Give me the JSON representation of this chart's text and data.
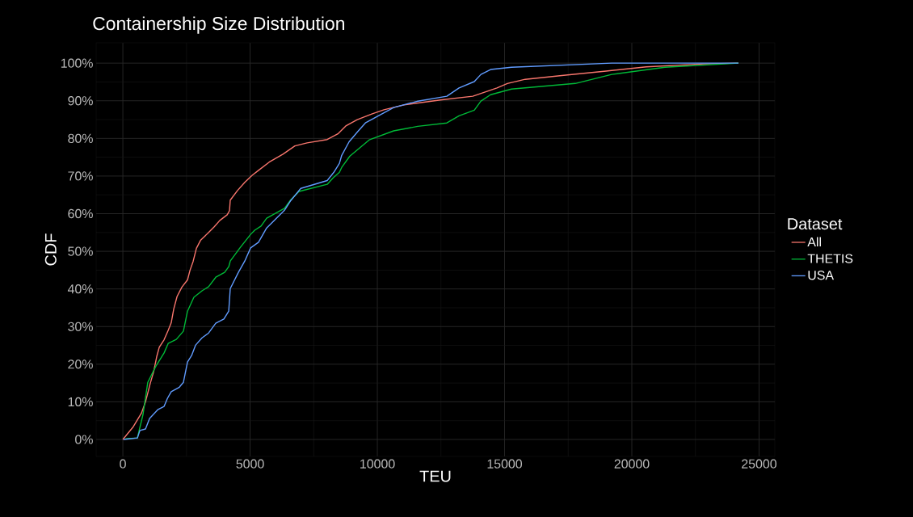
{
  "chart_data": {
    "type": "line",
    "title": "Containership Size Distribution",
    "xlabel": "TEU",
    "ylabel": "CDF",
    "legend_title": "Dataset",
    "legend": "right",
    "grid": true,
    "line_style": "solid",
    "marker": "none",
    "xlim": [
      -1050,
      25620
    ],
    "ylim": [
      -4.5,
      105.4
    ],
    "xticks": [
      0,
      5000,
      10000,
      15000,
      20000,
      25000
    ],
    "yticks": [
      {
        "value": 0,
        "label": "0%"
      },
      {
        "value": 10,
        "label": "10%"
      },
      {
        "value": 20,
        "label": "20%"
      },
      {
        "value": 30,
        "label": "30%"
      },
      {
        "value": 40,
        "label": "40%"
      },
      {
        "value": 50,
        "label": "50%"
      },
      {
        "value": 60,
        "label": "60%"
      },
      {
        "value": 70,
        "label": "70%"
      },
      {
        "value": 80,
        "label": "80%"
      },
      {
        "value": 90,
        "label": "90%"
      },
      {
        "value": 100,
        "label": "100%"
      }
    ],
    "series": [
      {
        "name": "All",
        "color": "#f8766d",
        "x": [
          0,
          410,
          730,
          890,
          1080,
          1210,
          1330,
          1430,
          1620,
          1780,
          1900,
          2000,
          2130,
          2320,
          2540,
          2640,
          2760,
          2890,
          3050,
          3370,
          3590,
          3810,
          4100,
          4190,
          4220,
          4510,
          4790,
          5080,
          5330,
          5750,
          6290,
          6760,
          7240,
          8030,
          8450,
          8760,
          9210,
          9780,
          10260,
          11050,
          12480,
          13750,
          14700,
          15110,
          15810,
          17400,
          18990,
          20570,
          22800,
          24190
        ],
        "values": [
          0,
          3.4,
          7,
          10,
          15,
          18,
          22,
          24.5,
          26.5,
          29,
          31,
          34.7,
          38,
          40.5,
          42.4,
          45,
          47.3,
          50.8,
          52.9,
          55,
          56.5,
          58.2,
          59.7,
          60.8,
          63.6,
          66.2,
          68.3,
          70.2,
          71.5,
          73.7,
          75.8,
          78,
          78.8,
          79.7,
          81.2,
          83.3,
          85,
          86.5,
          87.6,
          88.9,
          90.2,
          91.2,
          93.4,
          94.6,
          95.7,
          96.8,
          97.9,
          99,
          99.8,
          100
        ]
      },
      {
        "name": "THETIS",
        "color": "#00ba38",
        "x": [
          100,
          570,
          790,
          980,
          1300,
          1620,
          1780,
          2100,
          2380,
          2540,
          2790,
          3110,
          3370,
          3650,
          4000,
          4160,
          4220,
          4600,
          5020,
          5180,
          5430,
          5650,
          6350,
          6600,
          6920,
          8030,
          8260,
          8510,
          8600,
          8920,
          9680,
          10640,
          11590,
          12730,
          13210,
          13810,
          14070,
          14450,
          15270,
          17780,
          19210,
          21300,
          24190
        ],
        "values": [
          0.2,
          0.4,
          6.6,
          15.2,
          19.5,
          23,
          25.5,
          26.6,
          28.8,
          34.1,
          37.8,
          39.5,
          40.6,
          43.1,
          44.4,
          45.9,
          47.4,
          50.9,
          54.5,
          55.6,
          56.7,
          58.8,
          61.4,
          63.7,
          65.9,
          67.8,
          69.5,
          71,
          72.3,
          75.3,
          79.6,
          82,
          83.2,
          84.1,
          86,
          87.5,
          89.9,
          91.6,
          93.1,
          94.6,
          97,
          98.9,
          100
        ]
      },
      {
        "name": "USA",
        "color": "#619cff",
        "x": [
          30,
          570,
          670,
          890,
          1050,
          1370,
          1620,
          1750,
          1900,
          2220,
          2380,
          2540,
          2700,
          2860,
          3110,
          3370,
          3650,
          3970,
          4160,
          4220,
          4540,
          4790,
          5020,
          5330,
          5650,
          6350,
          6600,
          6990,
          8030,
          8290,
          8510,
          8600,
          8890,
          9240,
          9530,
          10640,
          11590,
          12730,
          13210,
          13810,
          14070,
          14450,
          15270,
          19210,
          24190
        ],
        "values": [
          0,
          0.4,
          2.4,
          2.8,
          5.6,
          7.9,
          8.8,
          10.9,
          12.7,
          13.9,
          15.2,
          20.6,
          22.3,
          25.1,
          27,
          28.3,
          30.9,
          32,
          34.1,
          40.1,
          44.4,
          47.4,
          50.9,
          52.4,
          56.2,
          60.9,
          63.5,
          66.7,
          68.8,
          71,
          73.4,
          75.5,
          79.1,
          81.9,
          84.1,
          88.2,
          89.9,
          91.2,
          93.4,
          95.1,
          97,
          98.3,
          98.9,
          100,
          100
        ]
      }
    ]
  }
}
